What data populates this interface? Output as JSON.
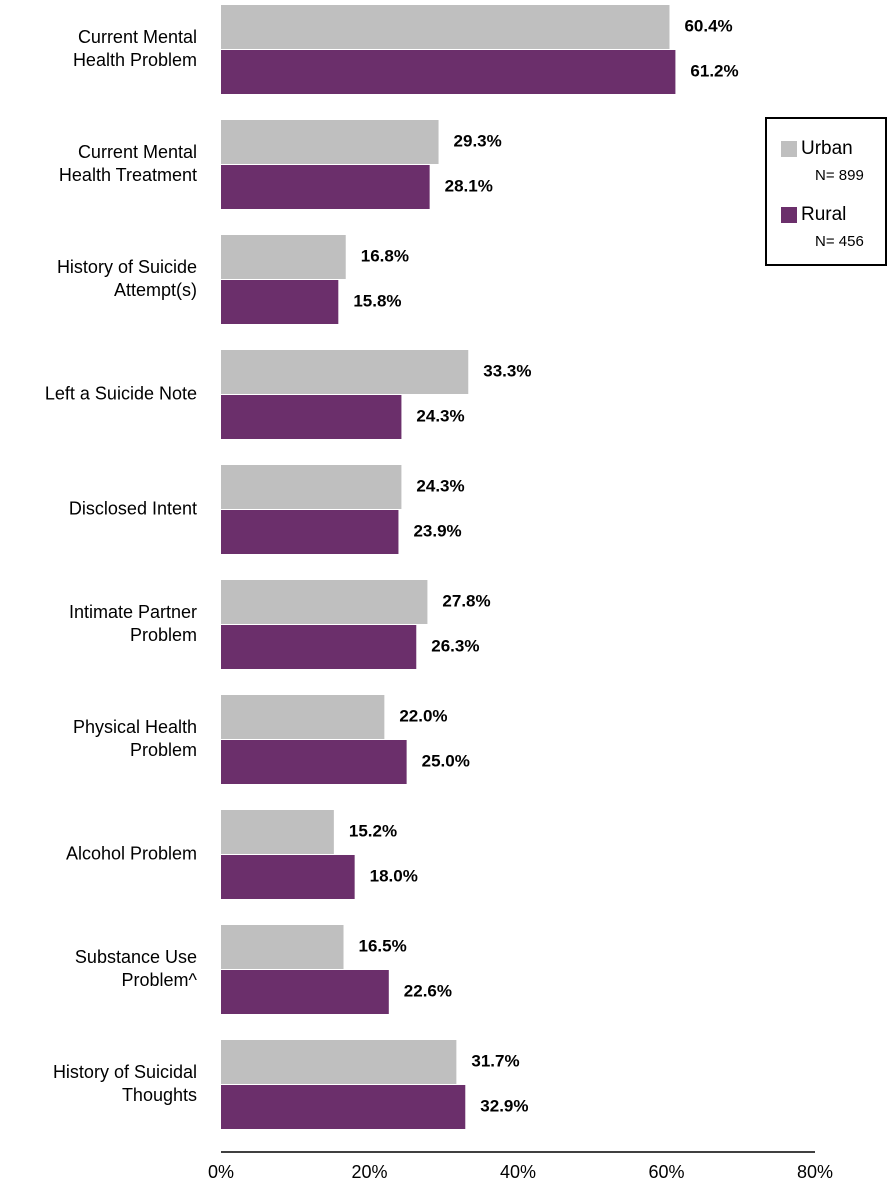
{
  "chart_data": {
    "type": "hbar",
    "categories": [
      "Current Mental\nHealth Problem",
      "Current Mental\nHealth Treatment",
      "History of Suicide\nAttempt(s)",
      "Left a Suicide Note",
      "Disclosed Intent",
      "Intimate Partner\nProblem",
      "Physical Health\nProblem",
      "Alcohol Problem",
      "Substance Use\nProblem^",
      "History of Suicidal\nThoughts"
    ],
    "series": [
      {
        "name": "Urban",
        "note": "N= 899",
        "color": "#bfbfbf",
        "values": [
          60.4,
          29.3,
          16.8,
          33.3,
          24.3,
          27.8,
          22.0,
          15.2,
          16.5,
          31.7
        ],
        "value_labels": [
          "60.4%",
          "29.3%",
          "16.8%",
          "33.3%",
          "24.3%",
          "27.8%",
          "22.0%",
          "15.2%",
          "16.5%",
          "31.7%"
        ]
      },
      {
        "name": "Rural",
        "note": "N= 456",
        "color": "#6b2f6b",
        "values": [
          61.2,
          28.1,
          15.8,
          24.3,
          23.9,
          26.3,
          25.0,
          18.0,
          22.6,
          32.9
        ],
        "value_labels": [
          "61.2%",
          "28.1%",
          "15.8%",
          "24.3%",
          "23.9%",
          "26.3%",
          "25.0%",
          "18.0%",
          "22.6%",
          "32.9%"
        ]
      }
    ],
    "xlim": [
      0,
      80
    ],
    "xticks": [
      {
        "value": 0,
        "label": "0%"
      },
      {
        "value": 20,
        "label": "20%"
      },
      {
        "value": 40,
        "label": "40%"
      },
      {
        "value": 60,
        "label": "60%"
      },
      {
        "value": 80,
        "label": "80%"
      }
    ],
    "legend": "right"
  }
}
